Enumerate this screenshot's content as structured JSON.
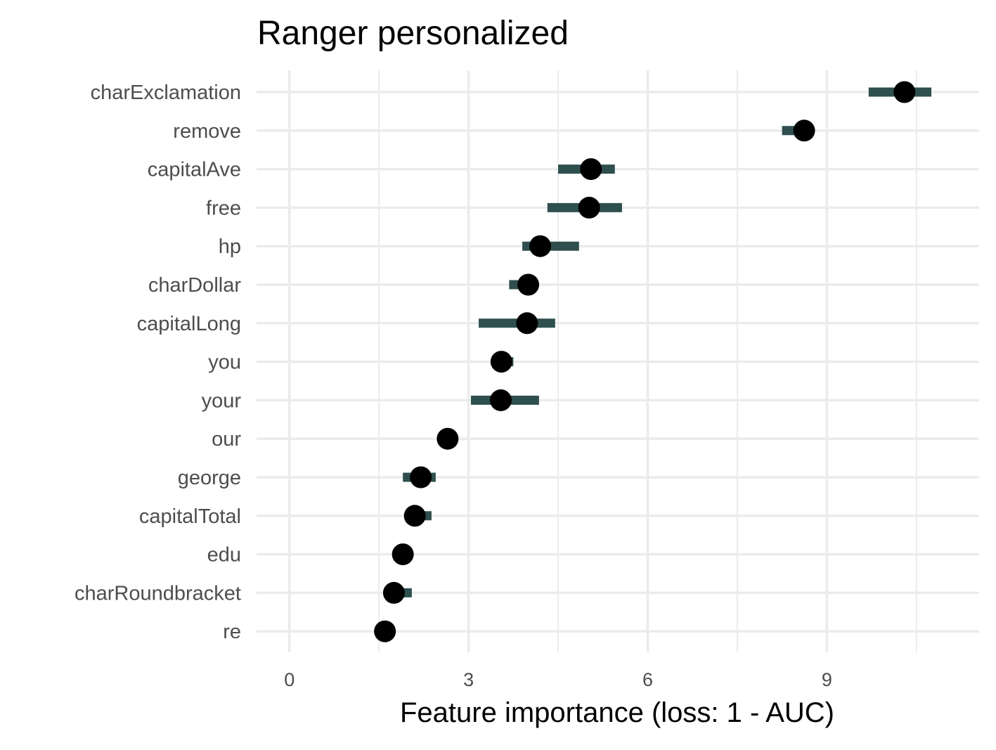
{
  "chart_data": {
    "type": "dot-interval",
    "title": "Ranger personalized",
    "xlabel": "Feature importance (loss: 1 - AUC)",
    "ylabel": "",
    "xlim": [
      -0.55,
      11.55
    ],
    "x_ticks": [
      0,
      3,
      6,
      9
    ],
    "x_minor_ticks": [
      1.5,
      4.5,
      7.5,
      10.5
    ],
    "grid": true,
    "legend": "none",
    "colors": {
      "interval": "#2f4f4f",
      "point": "#000000",
      "grid": "#ebebeb"
    },
    "features": [
      {
        "name": "charExclamation",
        "value": 10.3,
        "low": 9.7,
        "high": 10.75
      },
      {
        "name": "remove",
        "value": 8.62,
        "low": 8.25,
        "high": 8.62
      },
      {
        "name": "capitalAve",
        "value": 5.05,
        "low": 4.5,
        "high": 5.45
      },
      {
        "name": "free",
        "value": 5.02,
        "low": 4.32,
        "high": 5.57
      },
      {
        "name": "hp",
        "value": 4.2,
        "low": 3.9,
        "high": 4.85
      },
      {
        "name": "charDollar",
        "value": 4.0,
        "low": 3.68,
        "high": 4.0
      },
      {
        "name": "capitalLong",
        "value": 3.98,
        "low": 3.17,
        "high": 4.45
      },
      {
        "name": "you",
        "value": 3.55,
        "low": 3.55,
        "high": 3.75
      },
      {
        "name": "your",
        "value": 3.54,
        "low": 3.04,
        "high": 4.18
      },
      {
        "name": "our",
        "value": 2.65,
        "low": 2.65,
        "high": 2.65
      },
      {
        "name": "george",
        "value": 2.2,
        "low": 1.9,
        "high": 2.45
      },
      {
        "name": "capitalTotal",
        "value": 2.1,
        "low": 2.1,
        "high": 2.38
      },
      {
        "name": "edu",
        "value": 1.9,
        "low": 1.9,
        "high": 1.9
      },
      {
        "name": "charRoundbracket",
        "value": 1.75,
        "low": 1.75,
        "high": 2.05
      },
      {
        "name": "re",
        "value": 1.6,
        "low": 1.6,
        "high": 1.75
      }
    ]
  }
}
